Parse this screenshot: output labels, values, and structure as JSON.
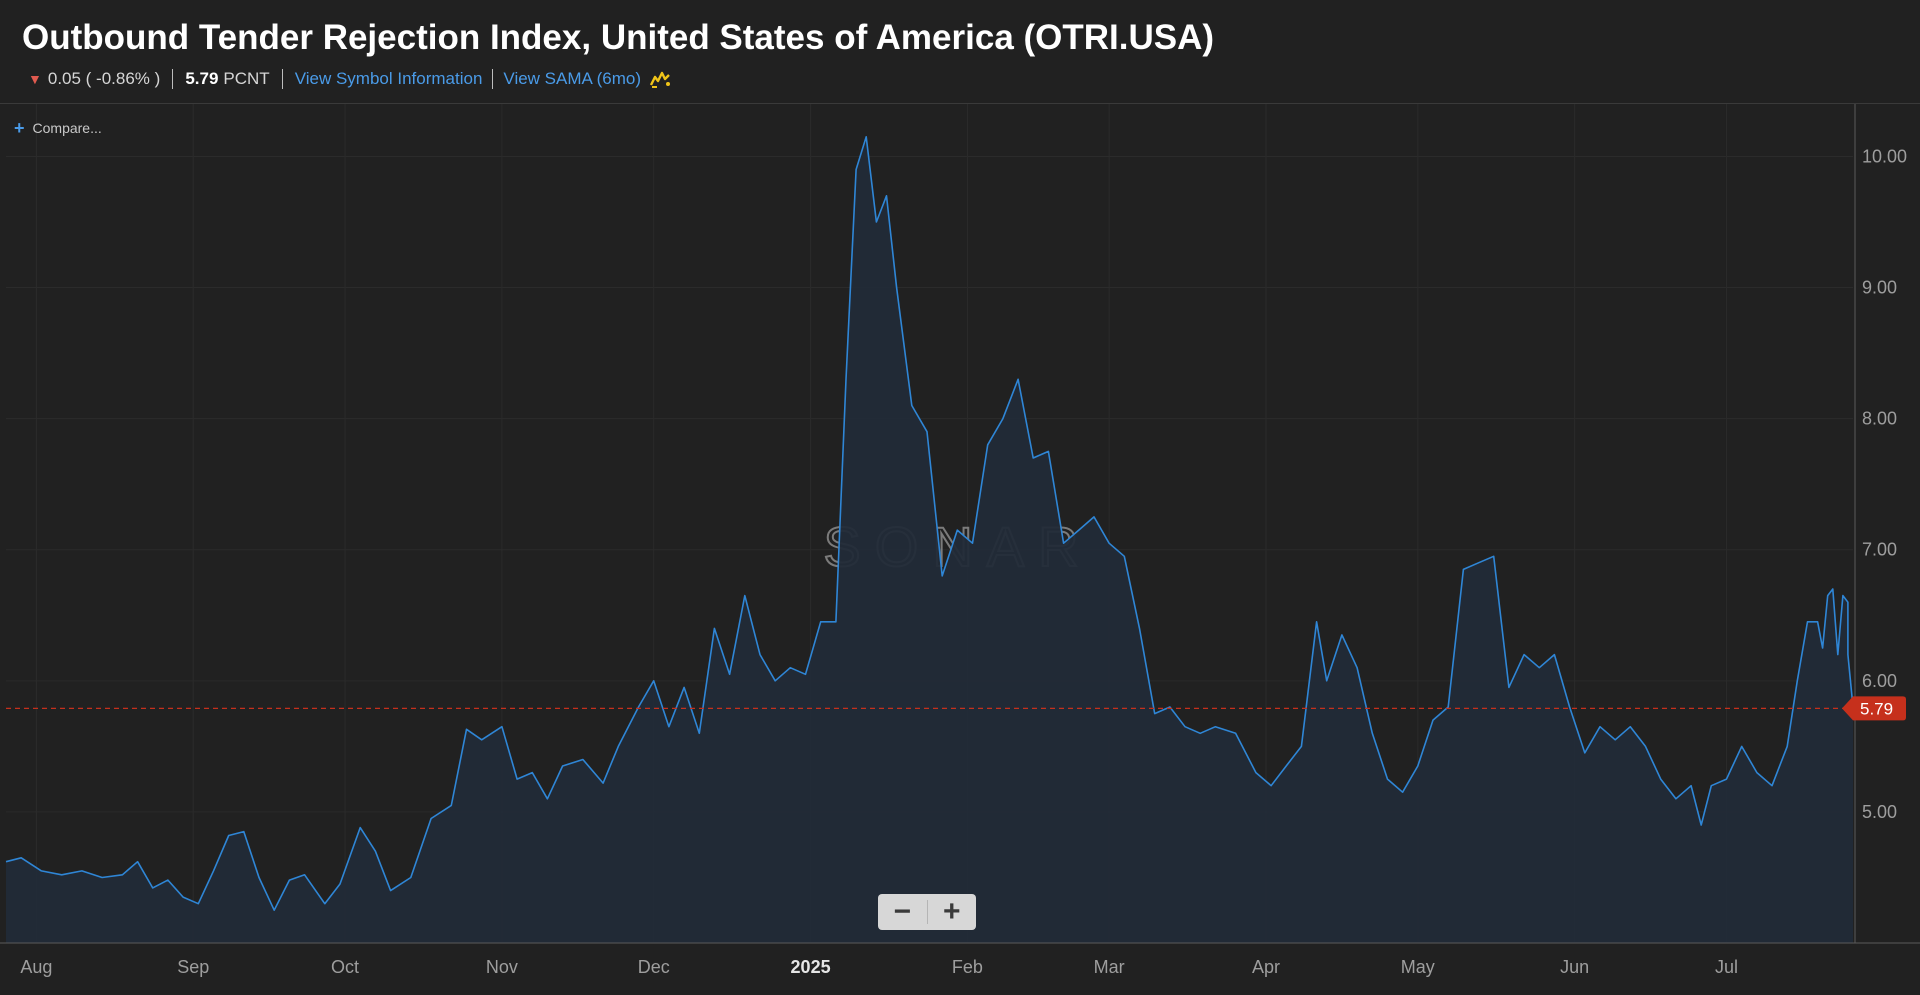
{
  "header": {
    "title": "Outbound Tender Rejection Index, United States of America (OTRI.USA)",
    "change": "0.05 ( -0.86% )",
    "price": "5.79",
    "unit": "PCNT",
    "view_symbol_label": "View Symbol Information",
    "view_sama_label": "View SAMA (6mo)",
    "sama_icon": "sama-chart-icon"
  },
  "toolbar": {
    "compare_label": "Compare...",
    "compare_icon": "plus-icon"
  },
  "zoom": {
    "minus_label": "−",
    "plus_label": "+"
  },
  "colors": {
    "line": "#2f86d6",
    "fill": "#222b38",
    "last_price": "#c6301c",
    "negative": "#e05a4f",
    "link": "#4a9be8",
    "background": "#212121"
  },
  "chart_data": {
    "type": "area",
    "watermark": "SONAR",
    "last_value": 5.79,
    "last_label": "5.79",
    "ylim": [
      4.0,
      10.4
    ],
    "yticks": [
      {
        "value": 5,
        "label": "5.00"
      },
      {
        "value": 6,
        "label": "6.00"
      },
      {
        "value": 7,
        "label": "7.00"
      },
      {
        "value": 8,
        "label": "8.00"
      },
      {
        "value": 9,
        "label": "9.00"
      },
      {
        "value": 10,
        "label": "10.00"
      }
    ],
    "xlim": [
      "2024-07-26",
      "2025-07-26"
    ],
    "xticks": [
      {
        "date": "2024-08-01",
        "label": "Aug"
      },
      {
        "date": "2024-09-01",
        "label": "Sep"
      },
      {
        "date": "2024-10-01",
        "label": "Oct"
      },
      {
        "date": "2024-11-01",
        "label": "Nov"
      },
      {
        "date": "2024-12-01",
        "label": "Dec"
      },
      {
        "date": "2025-01-01",
        "label": "2025"
      },
      {
        "date": "2025-02-01",
        "label": "Feb"
      },
      {
        "date": "2025-03-01",
        "label": "Mar"
      },
      {
        "date": "2025-04-01",
        "label": "Apr"
      },
      {
        "date": "2025-05-01",
        "label": "May"
      },
      {
        "date": "2025-06-01",
        "label": "Jun"
      },
      {
        "date": "2025-07-01",
        "label": "Jul"
      }
    ],
    "series": [
      {
        "values": [
          [
            "2024-07-26",
            4.62
          ],
          [
            "2024-07-29",
            4.65
          ],
          [
            "2024-08-02",
            4.55
          ],
          [
            "2024-08-06",
            4.52
          ],
          [
            "2024-08-10",
            4.55
          ],
          [
            "2024-08-14",
            4.5
          ],
          [
            "2024-08-18",
            4.52
          ],
          [
            "2024-08-21",
            4.62
          ],
          [
            "2024-08-24",
            4.42
          ],
          [
            "2024-08-27",
            4.48
          ],
          [
            "2024-08-30",
            4.35
          ],
          [
            "2024-09-02",
            4.3
          ],
          [
            "2024-09-05",
            4.55
          ],
          [
            "2024-09-08",
            4.82
          ],
          [
            "2024-09-11",
            4.85
          ],
          [
            "2024-09-14",
            4.5
          ],
          [
            "2024-09-17",
            4.25
          ],
          [
            "2024-09-20",
            4.48
          ],
          [
            "2024-09-23",
            4.52
          ],
          [
            "2024-09-27",
            4.3
          ],
          [
            "2024-09-30",
            4.45
          ],
          [
            "2024-10-04",
            4.88
          ],
          [
            "2024-10-07",
            4.7
          ],
          [
            "2024-10-10",
            4.4
          ],
          [
            "2024-10-14",
            4.5
          ],
          [
            "2024-10-18",
            4.95
          ],
          [
            "2024-10-22",
            5.05
          ],
          [
            "2024-10-25",
            5.63
          ],
          [
            "2024-10-28",
            5.55
          ],
          [
            "2024-11-01",
            5.65
          ],
          [
            "2024-11-04",
            5.25
          ],
          [
            "2024-11-07",
            5.3
          ],
          [
            "2024-11-10",
            5.1
          ],
          [
            "2024-11-13",
            5.35
          ],
          [
            "2024-11-17",
            5.4
          ],
          [
            "2024-11-21",
            5.22
          ],
          [
            "2024-11-24",
            5.5
          ],
          [
            "2024-11-28",
            5.8
          ],
          [
            "2024-12-01",
            6.0
          ],
          [
            "2024-12-04",
            5.65
          ],
          [
            "2024-12-07",
            5.95
          ],
          [
            "2024-12-10",
            5.6
          ],
          [
            "2024-12-13",
            6.4
          ],
          [
            "2024-12-16",
            6.05
          ],
          [
            "2024-12-19",
            6.65
          ],
          [
            "2024-12-22",
            6.2
          ],
          [
            "2024-12-25",
            6.0
          ],
          [
            "2024-12-28",
            6.1
          ],
          [
            "2024-12-31",
            6.05
          ],
          [
            "2025-01-03",
            6.45
          ],
          [
            "2025-01-06",
            6.45
          ],
          [
            "2025-01-08",
            8.3
          ],
          [
            "2025-01-10",
            9.9
          ],
          [
            "2025-01-12",
            10.15
          ],
          [
            "2025-01-14",
            9.5
          ],
          [
            "2025-01-16",
            9.7
          ],
          [
            "2025-01-18",
            9.0
          ],
          [
            "2025-01-21",
            8.1
          ],
          [
            "2025-01-24",
            7.9
          ],
          [
            "2025-01-27",
            6.8
          ],
          [
            "2025-01-30",
            7.15
          ],
          [
            "2025-02-02",
            7.05
          ],
          [
            "2025-02-05",
            7.8
          ],
          [
            "2025-02-08",
            8.0
          ],
          [
            "2025-02-11",
            8.3
          ],
          [
            "2025-02-14",
            7.7
          ],
          [
            "2025-02-17",
            7.75
          ],
          [
            "2025-02-20",
            7.05
          ],
          [
            "2025-02-23",
            7.15
          ],
          [
            "2025-02-26",
            7.25
          ],
          [
            "2025-03-01",
            7.05
          ],
          [
            "2025-03-04",
            6.95
          ],
          [
            "2025-03-07",
            6.4
          ],
          [
            "2025-03-10",
            5.75
          ],
          [
            "2025-03-13",
            5.8
          ],
          [
            "2025-03-16",
            5.65
          ],
          [
            "2025-03-19",
            5.6
          ],
          [
            "2025-03-22",
            5.65
          ],
          [
            "2025-03-26",
            5.6
          ],
          [
            "2025-03-30",
            5.3
          ],
          [
            "2025-04-02",
            5.2
          ],
          [
            "2025-04-05",
            5.35
          ],
          [
            "2025-04-08",
            5.5
          ],
          [
            "2025-04-11",
            6.45
          ],
          [
            "2025-04-13",
            6.0
          ],
          [
            "2025-04-16",
            6.35
          ],
          [
            "2025-04-19",
            6.1
          ],
          [
            "2025-04-22",
            5.6
          ],
          [
            "2025-04-25",
            5.25
          ],
          [
            "2025-04-28",
            5.15
          ],
          [
            "2025-05-01",
            5.35
          ],
          [
            "2025-05-04",
            5.7
          ],
          [
            "2025-05-07",
            5.8
          ],
          [
            "2025-05-10",
            6.85
          ],
          [
            "2025-05-13",
            6.9
          ],
          [
            "2025-05-16",
            6.95
          ],
          [
            "2025-05-19",
            5.95
          ],
          [
            "2025-05-22",
            6.2
          ],
          [
            "2025-05-25",
            6.1
          ],
          [
            "2025-05-28",
            6.2
          ],
          [
            "2025-05-31",
            5.8
          ],
          [
            "2025-06-03",
            5.45
          ],
          [
            "2025-06-06",
            5.65
          ],
          [
            "2025-06-09",
            5.55
          ],
          [
            "2025-06-12",
            5.65
          ],
          [
            "2025-06-15",
            5.5
          ],
          [
            "2025-06-18",
            5.25
          ],
          [
            "2025-06-21",
            5.1
          ],
          [
            "2025-06-24",
            5.2
          ],
          [
            "2025-06-26",
            4.9
          ],
          [
            "2025-06-28",
            5.2
          ],
          [
            "2025-07-01",
            5.25
          ],
          [
            "2025-07-04",
            5.5
          ],
          [
            "2025-07-07",
            5.3
          ],
          [
            "2025-07-10",
            5.2
          ],
          [
            "2025-07-13",
            5.5
          ],
          [
            "2025-07-15",
            6.0
          ],
          [
            "2025-07-17",
            6.45
          ],
          [
            "2025-07-19",
            6.45
          ],
          [
            "2025-07-20",
            6.25
          ],
          [
            "2025-07-21",
            6.65
          ],
          [
            "2025-07-22",
            6.7
          ],
          [
            "2025-07-23",
            6.2
          ],
          [
            "2025-07-24",
            6.65
          ],
          [
            "2025-07-25",
            6.6
          ],
          [
            "2025-07-25",
            6.2
          ],
          [
            "2025-07-26",
            5.8
          ]
        ]
      }
    ]
  }
}
